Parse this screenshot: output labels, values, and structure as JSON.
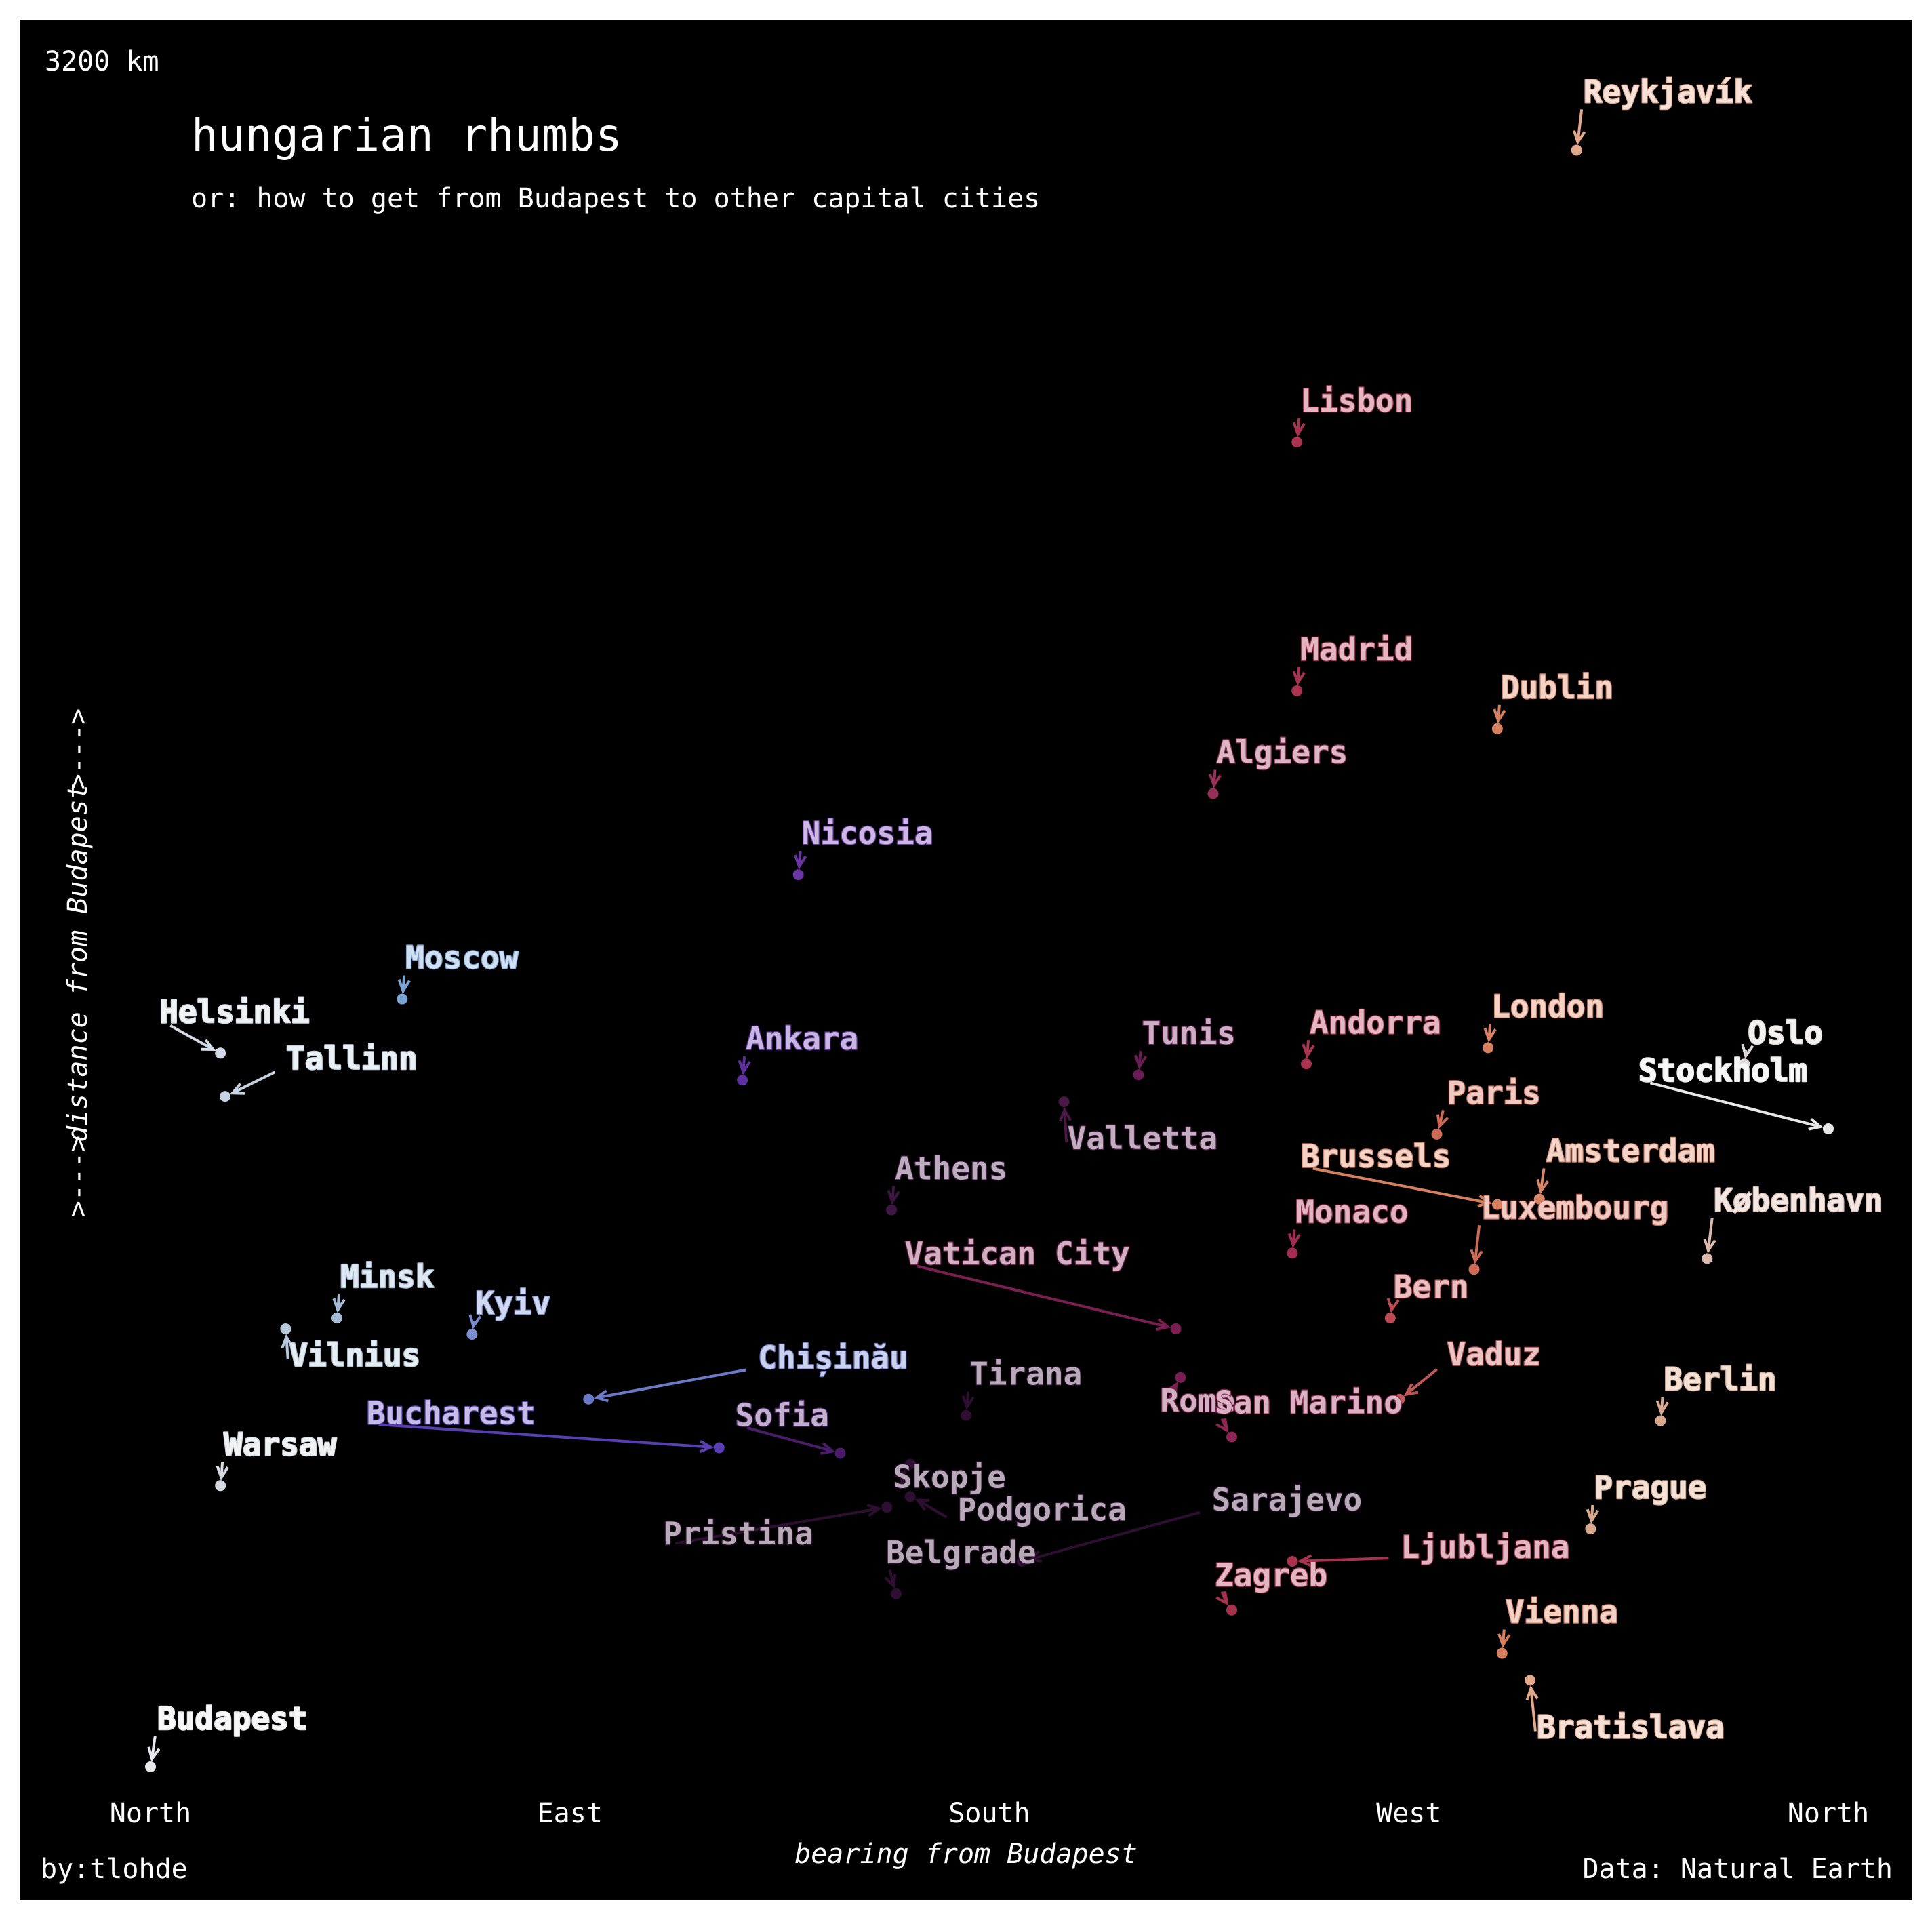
{
  "chart_data": {
    "type": "scatter",
    "title": "hungarian rhumbs",
    "subtitle": "or: how to get from Budapest to other capital cities",
    "xlabel": "bearing from Budapest",
    "ylabel": "distance from Budapest",
    "ylabel_arrow_left": ">--->",
    "ylabel_arrow_right": ">--->",
    "y_max_label": "3200 km",
    "ylim": [
      0,
      3200
    ],
    "xlim": [
      0,
      360
    ],
    "x_ticks": [
      {
        "value": 0,
        "label": "North"
      },
      {
        "value": 90,
        "label": "East"
      },
      {
        "value": 180,
        "label": "South"
      },
      {
        "value": 270,
        "label": "West"
      },
      {
        "value": 360,
        "label": "North"
      }
    ],
    "credit": "by:tlohde",
    "source": "Data: Natural Earth",
    "points": [
      {
        "name": "Budapest",
        "bearing": 0,
        "distance": 0,
        "color": "#e8e8ec",
        "dx": 10,
        "dy": -55
      },
      {
        "name": "Reykjavík",
        "bearing": 306,
        "distance": 2990,
        "color": "#e2a98c",
        "dx": 10,
        "dy": -70
      },
      {
        "name": "Lisbon",
        "bearing": 246,
        "distance": 2450,
        "color": "#a8334f",
        "dx": 5,
        "dy": -45
      },
      {
        "name": "Madrid",
        "bearing": 246,
        "distance": 1990,
        "color": "#a8334f",
        "dx": 5,
        "dy": -45
      },
      {
        "name": "Dublin",
        "bearing": 289,
        "distance": 1920,
        "color": "#d6805f",
        "dx": 5,
        "dy": -45
      },
      {
        "name": "Algiers",
        "bearing": 228,
        "distance": 1800,
        "color": "#963058",
        "dx": 5,
        "dy": -45
      },
      {
        "name": "Nicosia",
        "bearing": 139,
        "distance": 1650,
        "color": "#6a35a5",
        "dx": 5,
        "dy": -45
      },
      {
        "name": "Moscow",
        "bearing": 54,
        "distance": 1420,
        "color": "#7ba3d3",
        "dx": 5,
        "dy": -45
      },
      {
        "name": "Helsinki",
        "bearing": 15,
        "distance": 1320,
        "color": "#d3dce6",
        "dx": -90,
        "dy": -45
      },
      {
        "name": "Tallinn",
        "bearing": 16,
        "distance": 1240,
        "color": "#c5d3e2",
        "dx": 90,
        "dy": -40
      },
      {
        "name": "Andorra",
        "bearing": 248,
        "distance": 1300,
        "color": "#a8334f",
        "dx": 5,
        "dy": -45
      },
      {
        "name": "London",
        "bearing": 287,
        "distance": 1330,
        "color": "#d6805f",
        "dx": 5,
        "dy": -45
      },
      {
        "name": "Oslo",
        "bearing": 342,
        "distance": 1300,
        "color": "#e0d8d8",
        "dx": 5,
        "dy": -30
      },
      {
        "name": "Ankara",
        "bearing": 127,
        "distance": 1270,
        "color": "#5e2fa0",
        "dx": 5,
        "dy": -45
      },
      {
        "name": "Tunis",
        "bearing": 212,
        "distance": 1280,
        "color": "#6a1e55",
        "dx": 5,
        "dy": -45
      },
      {
        "name": "Stockholm",
        "bearing": 360,
        "distance": 1180,
        "color": "#e8e8e8",
        "dx": -280,
        "dy": -70
      },
      {
        "name": "Valletta",
        "bearing": 196,
        "distance": 1230,
        "color": "#4a1845",
        "dx": 5,
        "dy": 70
      },
      {
        "name": "Paris",
        "bearing": 276,
        "distance": 1170,
        "color": "#cc6a55",
        "dx": 15,
        "dy": -45
      },
      {
        "name": "Athens",
        "bearing": 159,
        "distance": 1030,
        "color": "#3e1643",
        "dx": 5,
        "dy": -45
      },
      {
        "name": "Brussels",
        "bearing": 289,
        "distance": 1040,
        "color": "#d6805f",
        "dx": -290,
        "dy": -55
      },
      {
        "name": "Amsterdam",
        "bearing": 298,
        "distance": 1050,
        "color": "#d88668",
        "dx": 10,
        "dy": -55
      },
      {
        "name": "København",
        "bearing": 334,
        "distance": 940,
        "color": "#dbb9ad",
        "dx": 10,
        "dy": -70
      },
      {
        "name": "Monaco",
        "bearing": 245,
        "distance": 950,
        "color": "#a22d50",
        "dx": 5,
        "dy": -45
      },
      {
        "name": "Luxembourg",
        "bearing": 284,
        "distance": 920,
        "color": "#cc6a55",
        "dx": 10,
        "dy": -75
      },
      {
        "name": "Bern",
        "bearing": 266,
        "distance": 830,
        "color": "#bb4a52",
        "dx": 5,
        "dy": -30
      },
      {
        "name": "Vatican City",
        "bearing": 220,
        "distance": 810,
        "color": "#7a1f52",
        "dx": -400,
        "dy": -95
      },
      {
        "name": "Kyiv",
        "bearing": 69,
        "distance": 800,
        "color": "#7b8fd0",
        "dx": 5,
        "dy": -30
      },
      {
        "name": "Minsk",
        "bearing": 40,
        "distance": 830,
        "color": "#a5bcd6",
        "dx": 5,
        "dy": -45
      },
      {
        "name": "Vilnius",
        "bearing": 29,
        "distance": 810,
        "color": "#b5c8da",
        "dx": 5,
        "dy": 55
      },
      {
        "name": "Chișinău",
        "bearing": 94,
        "distance": 680,
        "color": "#6a7ac7",
        "dx": 250,
        "dy": -45
      },
      {
        "name": "Bucharest",
        "bearing": 122,
        "distance": 590,
        "color": "#5a3eb3",
        "dx": -520,
        "dy": -35
      },
      {
        "name": "Rome",
        "bearing": 221,
        "distance": 720,
        "color": "#7a1f52",
        "dx": -30,
        "dy": 50
      },
      {
        "name": "Vaduz",
        "bearing": 268,
        "distance": 680,
        "color": "#c15858",
        "dx": 70,
        "dy": -50
      },
      {
        "name": "Berlin",
        "bearing": 324,
        "distance": 640,
        "color": "#d8a98e",
        "dx": 5,
        "dy": -45
      },
      {
        "name": "Tirana",
        "bearing": 175,
        "distance": 650,
        "color": "#2e0f32",
        "dx": 5,
        "dy": -45
      },
      {
        "name": "San Marino",
        "bearing": 232,
        "distance": 610,
        "color": "#8f2554",
        "dx": -25,
        "dy": -35
      },
      {
        "name": "Sofia",
        "bearing": 148,
        "distance": 580,
        "color": "#4a1d6a",
        "dx": -155,
        "dy": -40
      },
      {
        "name": "Warsaw",
        "bearing": 15,
        "distance": 520,
        "color": "#d6dbe1",
        "dx": 5,
        "dy": -45
      },
      {
        "name": "Skopje",
        "bearing": 163,
        "distance": 560,
        "color": "#2e0f32",
        "dx": -25,
        "dy": 35
      },
      {
        "name": "Podgorica",
        "bearing": 163,
        "distance": 500,
        "color": "#2e0f32",
        "dx": 70,
        "dy": 35
      },
      {
        "name": "Pristina",
        "bearing": 158,
        "distance": 480,
        "color": "#2e0f32",
        "dx": -330,
        "dy": 55
      },
      {
        "name": "Sarajevo",
        "bearing": 187,
        "distance": 380,
        "color": "#2e0f32",
        "dx": 280,
        "dy": -75
      },
      {
        "name": "Prague",
        "bearing": 309,
        "distance": 440,
        "color": "#d8a98e",
        "dx": 5,
        "dy": -45
      },
      {
        "name": "Ljubljana",
        "bearing": 245,
        "distance": 380,
        "color": "#a8334f",
        "dx": 160,
        "dy": -5
      },
      {
        "name": "Belgrade",
        "bearing": 160,
        "distance": 320,
        "color": "#2e0f32",
        "dx": -15,
        "dy": -45
      },
      {
        "name": "Zagreb",
        "bearing": 232,
        "distance": 290,
        "color": "#a8334f",
        "dx": -25,
        "dy": -35
      },
      {
        "name": "Vienna",
        "bearing": 290,
        "distance": 210,
        "color": "#d6805f",
        "dx": 5,
        "dy": -45
      },
      {
        "name": "Bratislava",
        "bearing": 296,
        "distance": 160,
        "color": "#e2a98c",
        "dx": 10,
        "dy": 85
      }
    ]
  }
}
